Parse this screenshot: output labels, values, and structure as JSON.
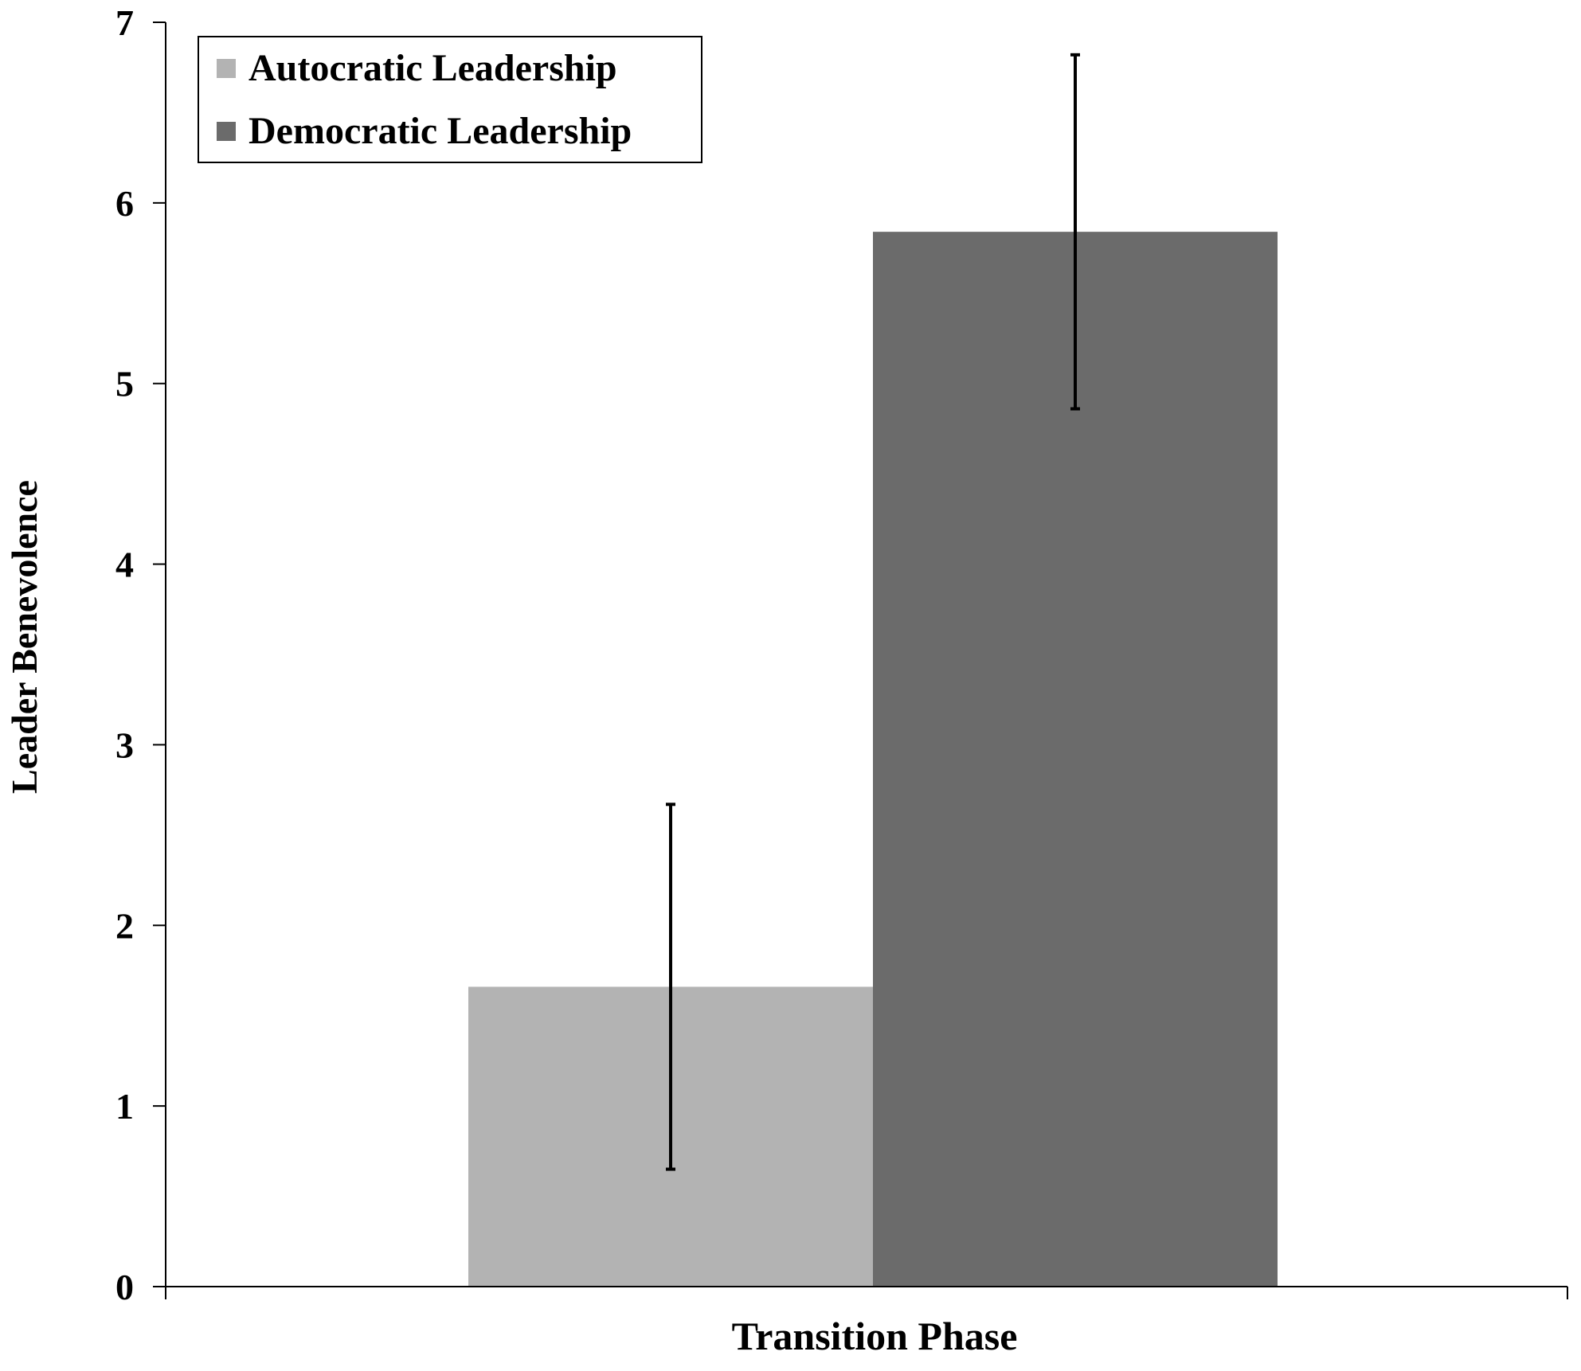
{
  "chart_data": {
    "type": "bar",
    "title": "",
    "xlabel": "Transition Phase",
    "ylabel": "Leader Benevolence",
    "categories": [
      ""
    ],
    "ylim": [
      0,
      7
    ],
    "yticks": [
      0,
      1,
      2,
      3,
      4,
      5,
      6,
      7
    ],
    "grid": false,
    "legend_position": "top-left",
    "series": [
      {
        "name": "Autocratic Leadership",
        "values": [
          1.66
        ],
        "error": [
          1.01
        ],
        "color": "#b3b3b3"
      },
      {
        "name": "Democratic Leadership",
        "values": [
          5.84
        ],
        "error": [
          0.98
        ],
        "color": "#6b6b6b"
      }
    ]
  }
}
